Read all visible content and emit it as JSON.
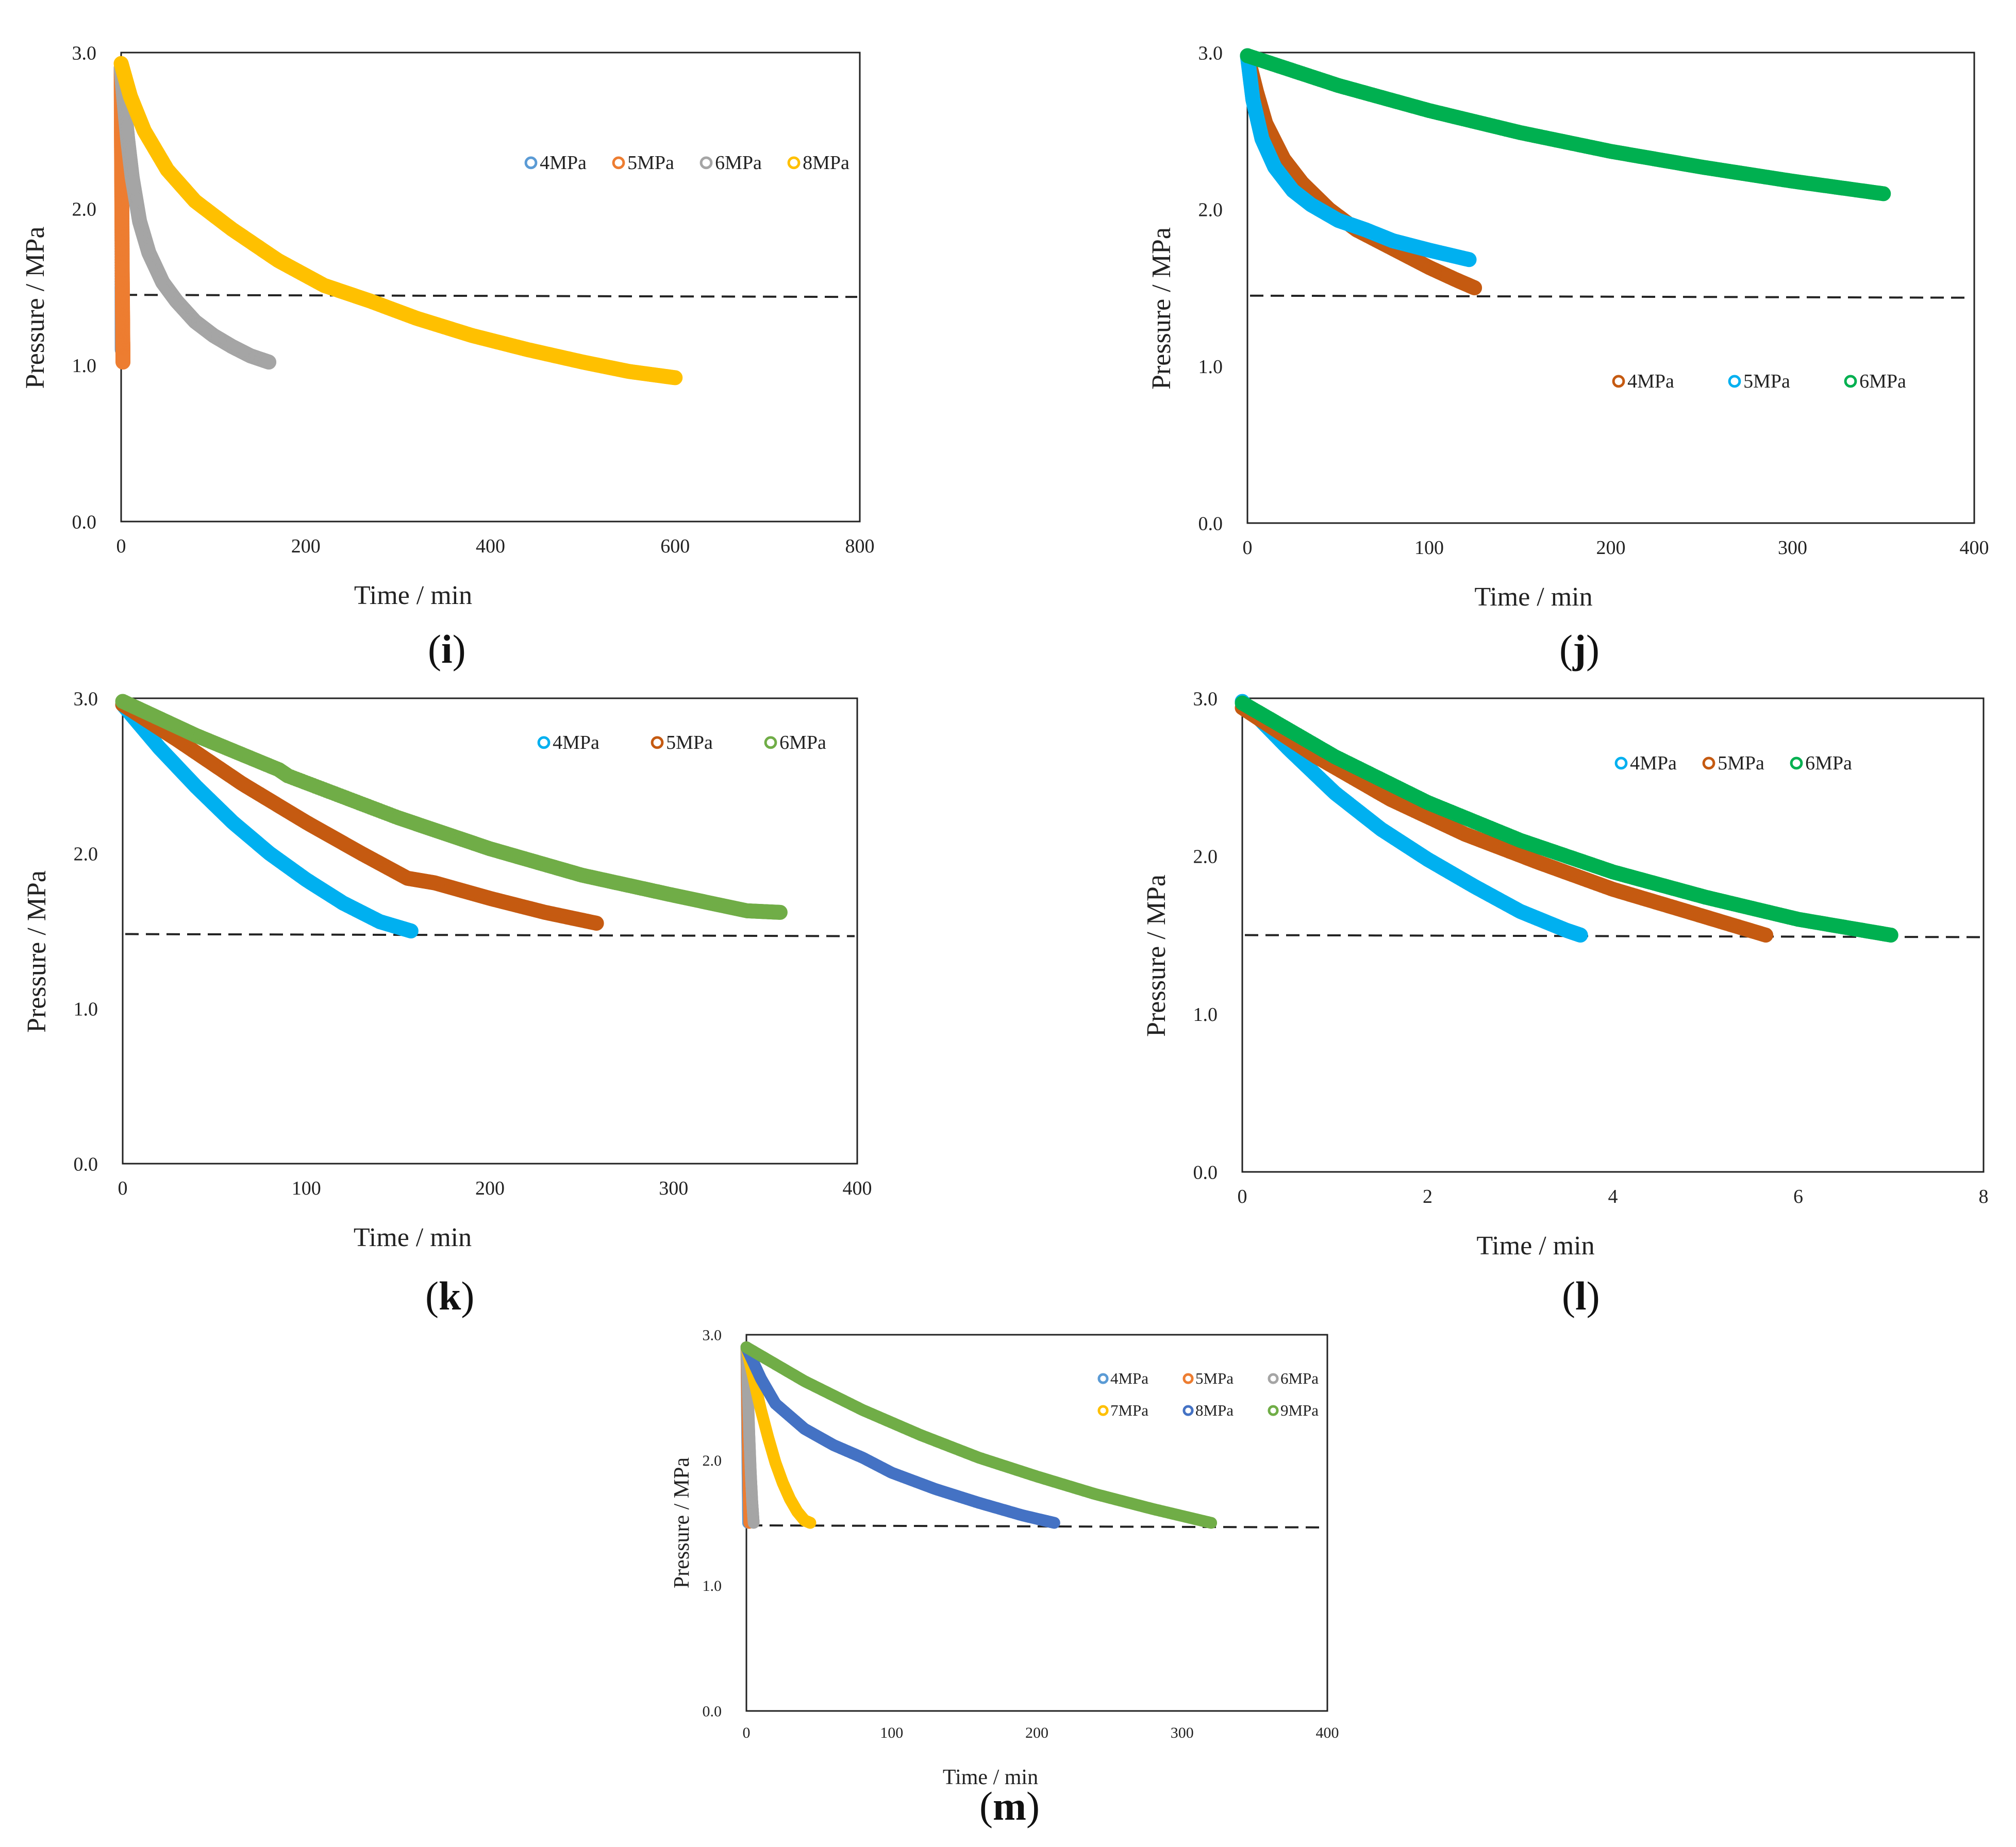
{
  "chart_data": [
    {
      "id": "i",
      "panel_label": "i",
      "type": "scatter",
      "xlabel": "Time / min",
      "ylabel": "Pressure / MPa",
      "xlim": [
        0,
        800
      ],
      "ylim": [
        0,
        3.0
      ],
      "xticks": [
        "0",
        "200",
        "400",
        "600",
        "800"
      ],
      "yticks": [
        "0.0",
        "1.0",
        "2.0",
        "3.0"
      ],
      "reference_line_y": 1.45,
      "legend_position": "top-center",
      "legend_rows": [
        [
          "4MPa",
          "5MPa",
          "6MPa",
          "8MPa"
        ]
      ],
      "series": [
        {
          "name": "4MPa",
          "color": "#5b9bd5",
          "x": [
            0.5,
            0.8,
            1.0,
            1.2
          ],
          "y": [
            2.85,
            2.2,
            1.5,
            1.1
          ]
        },
        {
          "name": "5MPa",
          "color": "#ed7d31",
          "x": [
            0,
            0.3,
            0.6,
            0.9,
            1.2,
            1.5,
            1.8,
            2.0
          ],
          "y": [
            2.9,
            2.5,
            2.2,
            1.9,
            1.6,
            1.35,
            1.15,
            1.02
          ]
        },
        {
          "name": "6MPa",
          "color": "#a5a5a5",
          "x": [
            0,
            3,
            7,
            12,
            20,
            30,
            45,
            60,
            80,
            100,
            120,
            140,
            160
          ],
          "y": [
            2.9,
            2.7,
            2.45,
            2.2,
            1.92,
            1.72,
            1.53,
            1.41,
            1.28,
            1.19,
            1.12,
            1.06,
            1.02
          ]
        },
        {
          "name": "8MPa",
          "color": "#ffc000",
          "x": [
            0,
            10,
            25,
            50,
            80,
            120,
            170,
            220,
            270,
            320,
            380,
            440,
            500,
            550,
            600
          ],
          "y": [
            2.93,
            2.72,
            2.5,
            2.25,
            2.05,
            1.87,
            1.67,
            1.51,
            1.41,
            1.3,
            1.19,
            1.1,
            1.02,
            0.96,
            0.92
          ]
        }
      ]
    },
    {
      "id": "j",
      "panel_label": "j",
      "type": "scatter",
      "xlabel": "Time / min",
      "ylabel": "Pressure / MPa",
      "xlim": [
        0,
        400
      ],
      "ylim": [
        0,
        3.0
      ],
      "xticks": [
        "0",
        "100",
        "200",
        "300",
        "400"
      ],
      "yticks": [
        "0.0",
        "1.0",
        "2.0",
        "3.0"
      ],
      "reference_line_y": 1.45,
      "legend_position": "middle-right",
      "legend_rows": [
        [
          "4MPa",
          "5MPa",
          "6MPa"
        ]
      ],
      "series": [
        {
          "name": "4MPa",
          "color": "#c55a11",
          "x": [
            0,
            5,
            10,
            20,
            30,
            45,
            60,
            80,
            100,
            115,
            125
          ],
          "y": [
            2.98,
            2.75,
            2.55,
            2.32,
            2.17,
            2.0,
            1.87,
            1.75,
            1.63,
            1.55,
            1.5
          ]
        },
        {
          "name": "5MPa",
          "color": "#00b0f0",
          "x": [
            0,
            3,
            8,
            15,
            25,
            35,
            50,
            65,
            80,
            100,
            122
          ],
          "y": [
            2.98,
            2.7,
            2.45,
            2.27,
            2.12,
            2.03,
            1.93,
            1.87,
            1.8,
            1.74,
            1.68
          ]
        },
        {
          "name": "6MPa",
          "color": "#00b050",
          "x": [
            0,
            50,
            100,
            150,
            200,
            250,
            300,
            350
          ],
          "y": [
            2.98,
            2.79,
            2.63,
            2.49,
            2.37,
            2.27,
            2.18,
            2.1
          ]
        }
      ]
    },
    {
      "id": "k",
      "panel_label": "k",
      "type": "scatter",
      "xlabel": "Time / min",
      "ylabel": "Pressure / MPa",
      "xlim": [
        0,
        400
      ],
      "ylim": [
        0,
        3.0
      ],
      "xticks": [
        "0",
        "100",
        "200",
        "300",
        "400"
      ],
      "yticks": [
        "0.0",
        "1.0",
        "2.0",
        "3.0"
      ],
      "reference_line_y": 1.48,
      "legend_position": "top-center",
      "legend_rows": [
        [
          "4MPa",
          "5MPa",
          "6MPa"
        ]
      ],
      "series": [
        {
          "name": "4MPa",
          "color": "#00b0f0",
          "x": [
            0,
            20,
            40,
            60,
            80,
            100,
            120,
            140,
            157
          ],
          "y": [
            2.96,
            2.68,
            2.43,
            2.2,
            2.0,
            1.83,
            1.68,
            1.56,
            1.5
          ]
        },
        {
          "name": "5MPa",
          "color": "#c55a11",
          "x": [
            0,
            30,
            65,
            100,
            130,
            155,
            170,
            200,
            230,
            258
          ],
          "y": [
            2.96,
            2.73,
            2.45,
            2.2,
            2.0,
            1.84,
            1.81,
            1.71,
            1.62,
            1.55
          ]
        },
        {
          "name": "6MPa",
          "color": "#70ad47",
          "x": [
            0,
            40,
            85,
            90,
            150,
            200,
            250,
            300,
            340,
            358
          ],
          "y": [
            2.98,
            2.76,
            2.54,
            2.5,
            2.23,
            2.03,
            1.86,
            1.73,
            1.63,
            1.62
          ]
        }
      ]
    },
    {
      "id": "l",
      "panel_label": "l",
      "type": "scatter",
      "xlabel": "Time / min",
      "ylabel": "Pressure / MPa",
      "xlim": [
        0,
        8
      ],
      "ylim": [
        0,
        3.0
      ],
      "xticks": [
        "0",
        "2",
        "4",
        "6",
        "8"
      ],
      "yticks": [
        "0.0",
        "1.0",
        "2.0",
        "3.0"
      ],
      "reference_line_y": 1.5,
      "legend_position": "top-center",
      "legend_rows": [
        [
          "4MPa",
          "5MPa",
          "6MPa"
        ]
      ],
      "series": [
        {
          "name": "4MPa",
          "color": "#00b0f0",
          "x": [
            0,
            0.5,
            1.0,
            1.5,
            2.0,
            2.5,
            3.0,
            3.5,
            3.65
          ],
          "y": [
            2.98,
            2.68,
            2.4,
            2.17,
            1.98,
            1.81,
            1.65,
            1.53,
            1.5
          ]
        },
        {
          "name": "5MPa",
          "color": "#c55a11",
          "x": [
            0,
            0.8,
            1.6,
            2.4,
            3.2,
            4.0,
            4.8,
            5.65
          ],
          "y": [
            2.94,
            2.63,
            2.36,
            2.14,
            1.96,
            1.79,
            1.65,
            1.5
          ]
        },
        {
          "name": "6MPa",
          "color": "#00b050",
          "x": [
            0,
            1,
            2,
            3,
            4,
            5,
            6,
            7
          ],
          "y": [
            2.97,
            2.63,
            2.34,
            2.1,
            1.9,
            1.74,
            1.6,
            1.5
          ]
        }
      ]
    },
    {
      "id": "m",
      "panel_label": "m",
      "type": "scatter",
      "xlabel": "Time / min",
      "ylabel": "Pressure / MPa",
      "xlim": [
        0,
        400
      ],
      "ylim": [
        0,
        3.0
      ],
      "xticks": [
        "0",
        "100",
        "200",
        "300",
        "400"
      ],
      "yticks": [
        "0.0",
        "1.0",
        "2.0",
        "3.0"
      ],
      "reference_line_y": 1.48,
      "legend_position": "top-right",
      "legend_rows": [
        [
          "4MPa",
          "5MPa",
          "6MPa"
        ],
        [
          "7MPa",
          "8MPa",
          "9MPa"
        ]
      ],
      "series": [
        {
          "name": "4MPa",
          "color": "#5b9bd5",
          "x": [
            0,
            0.4,
            0.8,
            1.2
          ],
          "y": [
            2.9,
            2.4,
            1.9,
            1.5
          ]
        },
        {
          "name": "5MPa",
          "color": "#ed7d31",
          "x": [
            0,
            0.5,
            1.0,
            1.5,
            2.0
          ],
          "y": [
            2.9,
            2.5,
            2.1,
            1.75,
            1.5
          ]
        },
        {
          "name": "6MPa",
          "color": "#a5a5a5",
          "x": [
            0,
            1,
            2,
            3,
            4,
            5
          ],
          "y": [
            2.9,
            2.55,
            2.2,
            1.9,
            1.67,
            1.5
          ]
        },
        {
          "name": "7MPa",
          "color": "#ffc000",
          "x": [
            0,
            5,
            10,
            15,
            20,
            25,
            30,
            35,
            40,
            44
          ],
          "y": [
            2.9,
            2.65,
            2.4,
            2.18,
            1.98,
            1.82,
            1.69,
            1.59,
            1.52,
            1.5
          ]
        },
        {
          "name": "8MPa",
          "color": "#4472c4",
          "x": [
            0,
            10,
            20,
            40,
            60,
            80,
            100,
            130,
            160,
            190,
            212
          ],
          "y": [
            2.9,
            2.65,
            2.45,
            2.25,
            2.12,
            2.02,
            1.9,
            1.77,
            1.66,
            1.56,
            1.5
          ]
        },
        {
          "name": "9MPa",
          "color": "#70ad47",
          "x": [
            0,
            40,
            80,
            120,
            160,
            200,
            240,
            280,
            320
          ],
          "y": [
            2.9,
            2.63,
            2.4,
            2.2,
            2.02,
            1.87,
            1.73,
            1.61,
            1.5
          ]
        }
      ]
    }
  ]
}
